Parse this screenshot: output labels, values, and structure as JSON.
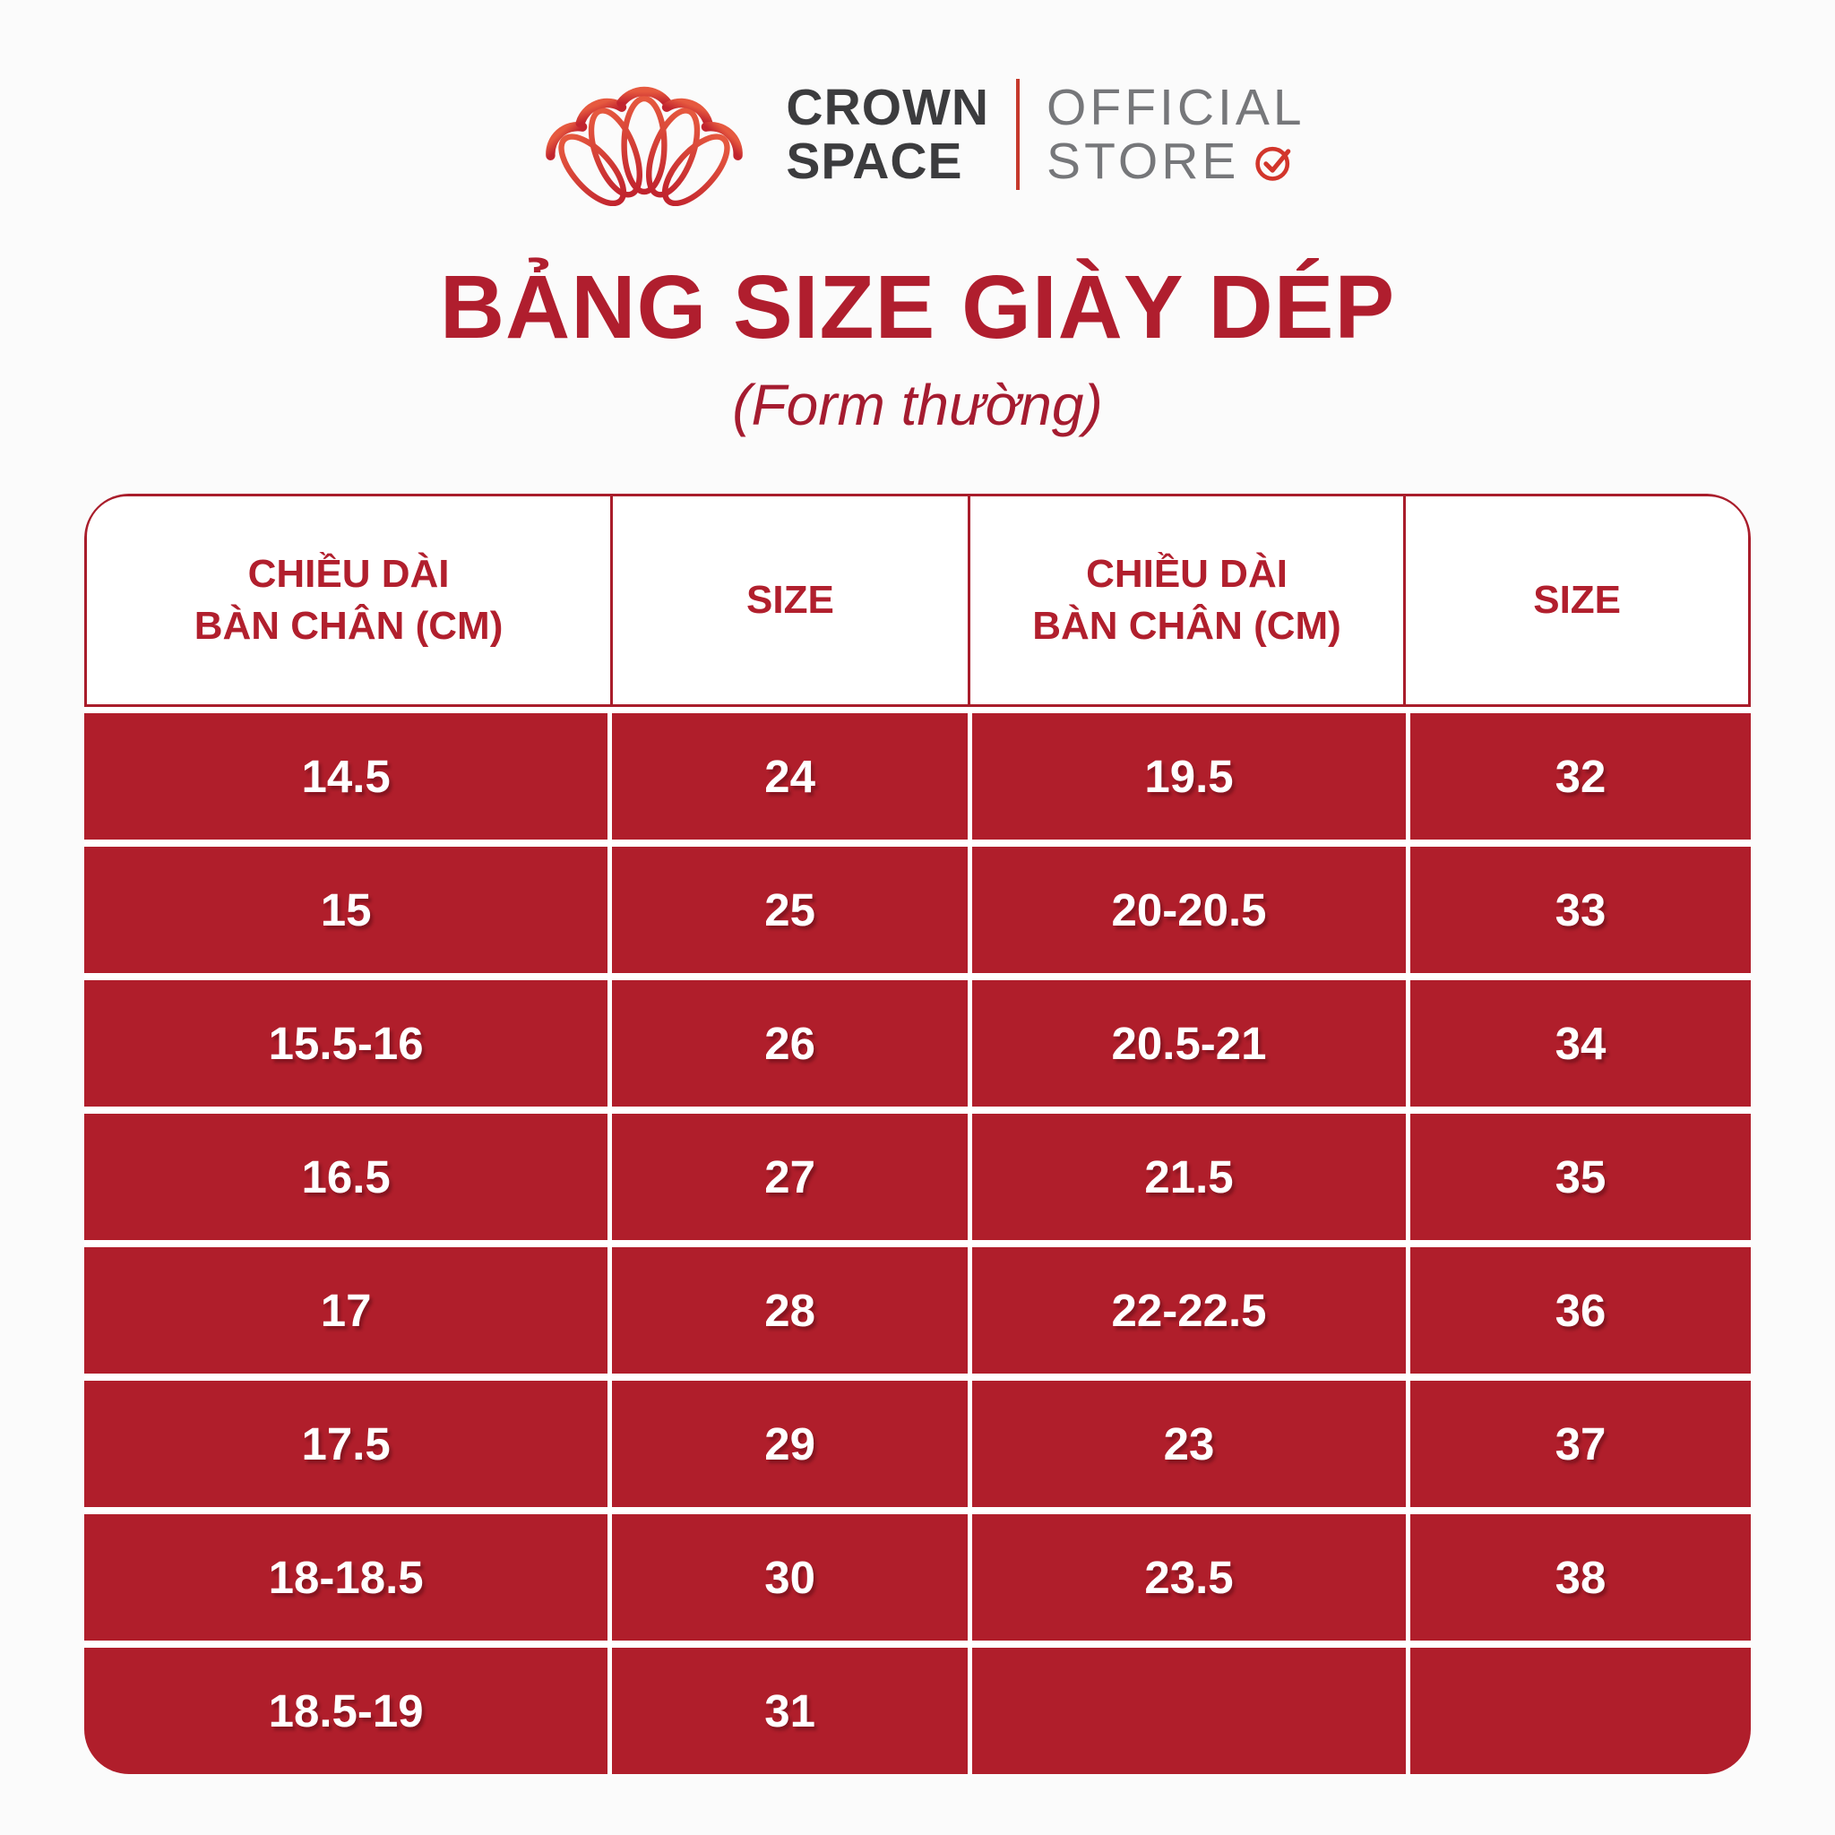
{
  "logo": {
    "brand_line1": "CROWN",
    "brand_line2": "SPACE",
    "store_line1": "OFFICIAL",
    "store_line2": "STORE"
  },
  "heading": {
    "title": "BẢNG SIZE GIÀY DÉP",
    "subtitle": "(Form thường)"
  },
  "table": {
    "headers": [
      {
        "line1": "CHIỀU DÀI",
        "line2": "BÀN CHÂN (CM)"
      },
      {
        "line1": "SIZE"
      },
      {
        "line1": "CHIỀU DÀI",
        "line2": "BÀN CHÂN (CM)"
      },
      {
        "line1": "SIZE"
      }
    ]
  },
  "chart_data": {
    "type": "table",
    "title": "BẢNG SIZE GIÀY DÉP",
    "subtitle": "(Form thường)",
    "columns": [
      "CHIỀU DÀI BÀN CHÂN (CM)",
      "SIZE",
      "CHIỀU DÀI BÀN CHÂN (CM)",
      "SIZE"
    ],
    "rows": [
      [
        "14.5",
        "24",
        "19.5",
        "32"
      ],
      [
        "15",
        "25",
        "20-20.5",
        "33"
      ],
      [
        "15.5-16",
        "26",
        "20.5-21",
        "34"
      ],
      [
        "16.5",
        "27",
        "21.5",
        "35"
      ],
      [
        "17",
        "28",
        "22-22.5",
        "36"
      ],
      [
        "17.5",
        "29",
        "23",
        "37"
      ],
      [
        "18-18.5",
        "30",
        "23.5",
        "38"
      ],
      [
        "18.5-19",
        "31",
        "",
        ""
      ]
    ]
  },
  "colors": {
    "cell_red": "#B01E2B",
    "border_red": "#A91D2B",
    "title_red": "#B01E2E",
    "logo_red_top": "#E6593F",
    "logo_red_bottom": "#C1242E",
    "brand_text": "#3C3C3E",
    "store_text": "#76777A",
    "background": "#FBFBFB",
    "cell_text": "#FFFFFF"
  }
}
